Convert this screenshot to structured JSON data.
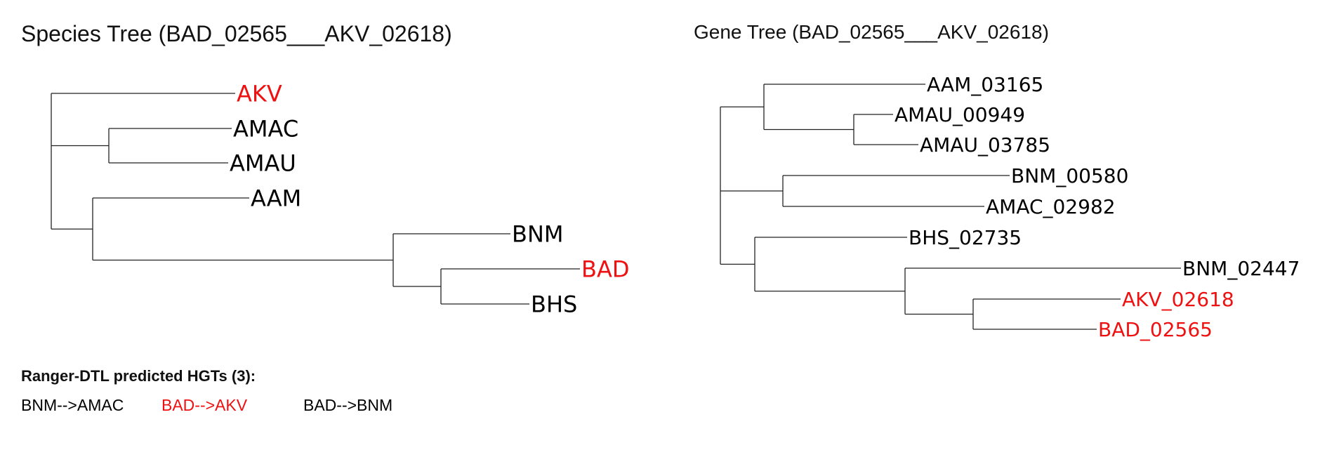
{
  "species_tree": {
    "title": "Species Tree (BAD_02565___AKV_02618)",
    "leaves": [
      {
        "label": "AKV",
        "color": "#ee1111"
      },
      {
        "label": "AMAC",
        "color": "#000000"
      },
      {
        "label": "AMAU",
        "color": "#000000"
      },
      {
        "label": "AAM",
        "color": "#000000"
      },
      {
        "label": "BNM",
        "color": "#000000"
      },
      {
        "label": "BAD",
        "color": "#ee1111"
      },
      {
        "label": "BHS",
        "color": "#000000"
      }
    ]
  },
  "gene_tree": {
    "title": "Gene Tree (BAD_02565___AKV_02618)",
    "leaves": [
      {
        "label": "AAM_03165",
        "color": "#000000"
      },
      {
        "label": "AMAU_00949",
        "color": "#000000"
      },
      {
        "label": "AMAU_03785",
        "color": "#000000"
      },
      {
        "label": "BNM_00580",
        "color": "#000000"
      },
      {
        "label": "AMAC_02982",
        "color": "#000000"
      },
      {
        "label": "BHS_02735",
        "color": "#000000"
      },
      {
        "label": "BNM_02447",
        "color": "#000000"
      },
      {
        "label": "AKV_02618",
        "color": "#ee1111"
      },
      {
        "label": "BAD_02565",
        "color": "#ee1111"
      }
    ]
  },
  "hgt": {
    "heading": "Ranger-DTL predicted HGTs (3):",
    "items": [
      {
        "label": "BNM-->AMAC",
        "color": "#000000"
      },
      {
        "label": "BAD-->AKV",
        "color": "#ee1111"
      },
      {
        "label": "BAD-->BNM",
        "color": "#000000"
      }
    ]
  }
}
